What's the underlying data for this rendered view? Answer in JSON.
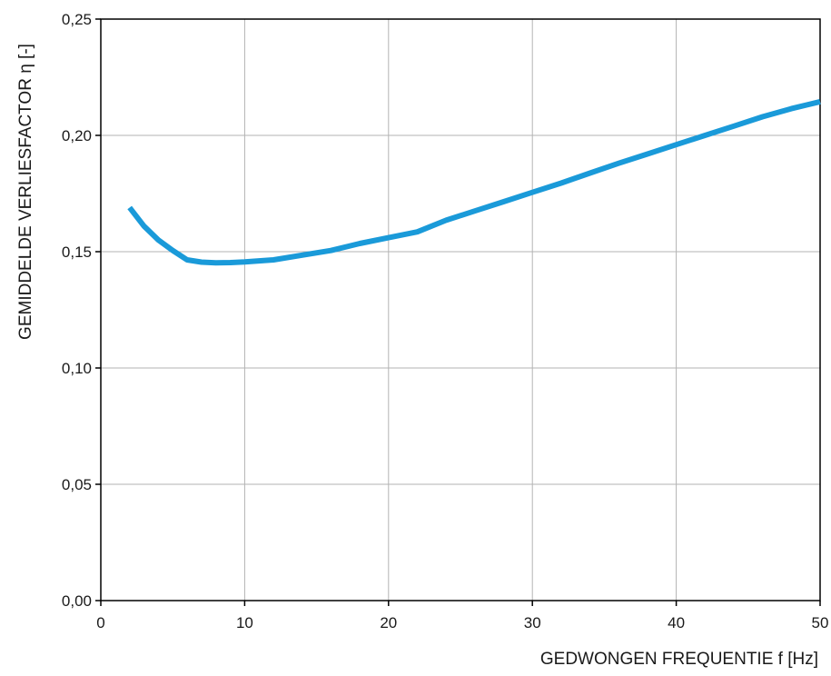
{
  "chart_data": {
    "type": "line",
    "xlabel": "GEDWONGEN FREQUENTIE f [Hz]",
    "ylabel": "GEMIDDELDE VERLIESFACTOR η [-]",
    "xlim": [
      0,
      50
    ],
    "ylim": [
      0,
      0.25
    ],
    "x_ticks": [
      0,
      10,
      20,
      30,
      40,
      50
    ],
    "x_tick_labels": [
      "0",
      "10",
      "20",
      "30",
      "40",
      "50"
    ],
    "y_ticks": [
      0,
      0.05,
      0.1,
      0.15,
      0.2,
      0.25
    ],
    "y_tick_labels": [
      "0,00",
      "0,05",
      "0,10",
      "0,15",
      "0,20",
      "0,25"
    ],
    "grid": true,
    "series": [
      {
        "color": "#1a9ad9",
        "x": [
          2,
          3,
          4,
          5,
          6,
          7,
          8,
          9,
          10,
          12,
          14,
          16,
          18,
          20,
          22,
          24,
          26,
          28,
          30,
          32,
          34,
          36,
          38,
          40,
          42,
          44,
          46,
          48,
          50
        ],
        "y": [
          0.169,
          0.161,
          0.155,
          0.1505,
          0.1465,
          0.1455,
          0.1452,
          0.1453,
          0.1456,
          0.1465,
          0.1485,
          0.1505,
          0.1535,
          0.156,
          0.1585,
          0.1635,
          0.1675,
          0.1715,
          0.1755,
          0.1795,
          0.1838,
          0.188,
          0.192,
          0.196,
          0.2,
          0.204,
          0.208,
          0.2115,
          0.2145
        ]
      }
    ]
  }
}
